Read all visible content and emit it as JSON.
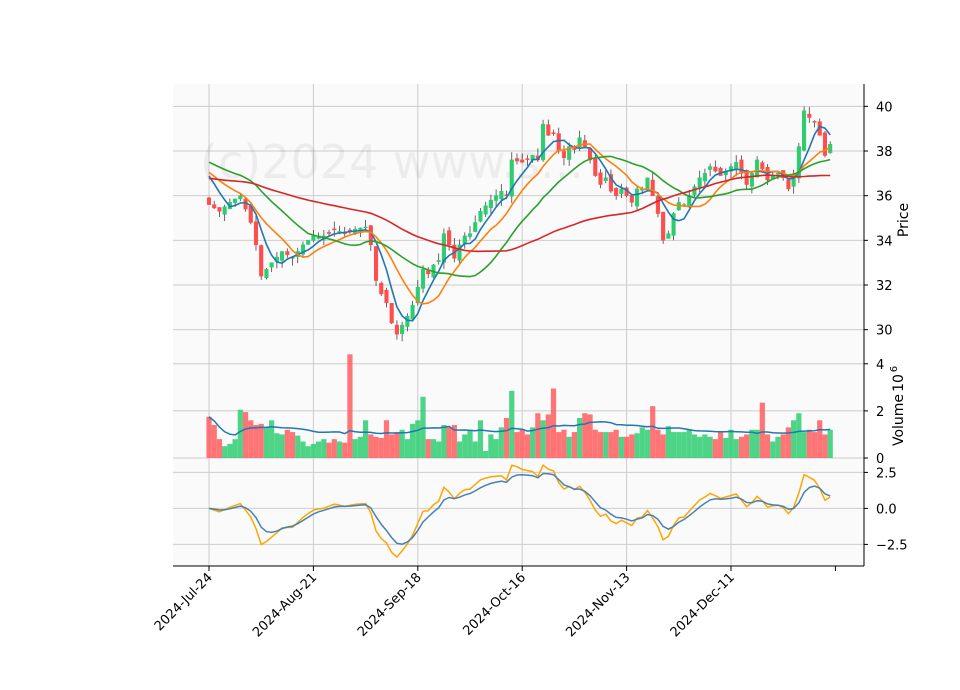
{
  "chart_data": {
    "type": "candlestick",
    "watermark": "(c)2024 www.s...",
    "y_label_price": "Price",
    "y_label_volume": "Volume",
    "volume_exponent": "10",
    "volume_exponent_power": "6",
    "price_ylim": [
      29.0,
      41.0
    ],
    "volume_ylim": [
      0,
      4.5
    ],
    "macd_ylim": [
      -4.0,
      3.5
    ],
    "price_ticks": [
      "30",
      "32",
      "34",
      "36",
      "38",
      "40"
    ],
    "volume_ticks": [
      "0",
      "2",
      "4"
    ],
    "macd_ticks": [
      "−2.5",
      "0.0",
      "2.5"
    ],
    "x_tick_labels": [
      "2024-Jul-24",
      "2024-Aug-21",
      "2024-Sep-18",
      "2024-Oct-16",
      "2024-Nov-13",
      "2024-Dec-11"
    ],
    "x_tick_index": [
      0,
      20,
      40,
      60,
      80,
      100
    ],
    "n_bars": 120,
    "price_anchors": [
      [
        0,
        35.6
      ],
      [
        2,
        35.3
      ],
      [
        4,
        35.7
      ],
      [
        6,
        36.0
      ],
      [
        8,
        34.8
      ],
      [
        9,
        33.8
      ],
      [
        10,
        32.4
      ],
      [
        12,
        33.0
      ],
      [
        14,
        33.5
      ],
      [
        16,
        33.2
      ],
      [
        18,
        33.8
      ],
      [
        20,
        34.2
      ],
      [
        22,
        34.2
      ],
      [
        24,
        34.5
      ],
      [
        26,
        34.3
      ],
      [
        28,
        34.5
      ],
      [
        30,
        34.6
      ],
      [
        31,
        33.8
      ],
      [
        32,
        32.2
      ],
      [
        33,
        31.6
      ],
      [
        34,
        31.2
      ],
      [
        35,
        30.3
      ],
      [
        36,
        29.8
      ],
      [
        37,
        30.2
      ],
      [
        38,
        30.6
      ],
      [
        39,
        31.1
      ],
      [
        40,
        31.9
      ],
      [
        41,
        32.7
      ],
      [
        42,
        32.5
      ],
      [
        43,
        32.9
      ],
      [
        44,
        33.1
      ],
      [
        45,
        34.3
      ],
      [
        46,
        33.8
      ],
      [
        47,
        33.2
      ],
      [
        48,
        33.8
      ],
      [
        49,
        34.2
      ],
      [
        50,
        34.3
      ],
      [
        52,
        35.3
      ],
      [
        54,
        35.8
      ],
      [
        56,
        36.2
      ],
      [
        57,
        36.0
      ],
      [
        58,
        37.6
      ],
      [
        60,
        37.5
      ],
      [
        62,
        37.8
      ],
      [
        63,
        37.6
      ],
      [
        64,
        39.2
      ],
      [
        65,
        38.7
      ],
      [
        66,
        38.8
      ],
      [
        67,
        38.0
      ],
      [
        68,
        37.7
      ],
      [
        69,
        38.2
      ],
      [
        70,
        38.1
      ],
      [
        71,
        38.6
      ],
      [
        72,
        38.2
      ],
      [
        73,
        37.6
      ],
      [
        74,
        36.9
      ],
      [
        75,
        36.5
      ],
      [
        76,
        36.8
      ],
      [
        77,
        36.2
      ],
      [
        78,
        36.0
      ],
      [
        79,
        36.3
      ],
      [
        80,
        36.0
      ],
      [
        81,
        35.7
      ],
      [
        82,
        36.3
      ],
      [
        83,
        36.3
      ],
      [
        84,
        36.8
      ],
      [
        85,
        36.0
      ],
      [
        86,
        35.2
      ],
      [
        87,
        34.0
      ],
      [
        88,
        34.3
      ],
      [
        89,
        35.2
      ],
      [
        90,
        35.7
      ],
      [
        91,
        35.6
      ],
      [
        92,
        36.0
      ],
      [
        93,
        36.4
      ],
      [
        94,
        36.8
      ],
      [
        95,
        37.0
      ],
      [
        96,
        37.3
      ],
      [
        97,
        37.1
      ],
      [
        98,
        36.9
      ],
      [
        99,
        37.1
      ],
      [
        100,
        37.3
      ],
      [
        101,
        37.5
      ],
      [
        102,
        37.0
      ],
      [
        103,
        36.5
      ],
      [
        104,
        37.0
      ],
      [
        105,
        37.6
      ],
      [
        106,
        37.2
      ],
      [
        107,
        36.7
      ],
      [
        108,
        36.9
      ],
      [
        109,
        37.0
      ],
      [
        110,
        36.8
      ],
      [
        111,
        36.3
      ],
      [
        112,
        36.9
      ],
      [
        113,
        38.2
      ],
      [
        114,
        39.8
      ],
      [
        115,
        39.5
      ],
      [
        116,
        39.3
      ],
      [
        117,
        38.7
      ],
      [
        118,
        37.8
      ],
      [
        119,
        38.3
      ]
    ],
    "volume_anchors": [
      [
        0,
        1.75
      ],
      [
        1,
        1.4
      ],
      [
        2,
        0.8
      ],
      [
        3,
        0.5
      ],
      [
        4,
        0.6
      ],
      [
        5,
        0.8
      ],
      [
        6,
        2.05
      ],
      [
        7,
        1.95
      ],
      [
        8,
        1.6
      ],
      [
        9,
        1.4
      ],
      [
        10,
        1.45
      ],
      [
        11,
        1.3
      ],
      [
        12,
        1.6
      ],
      [
        13,
        1.05
      ],
      [
        14,
        1.0
      ],
      [
        15,
        1.2
      ],
      [
        16,
        1.1
      ],
      [
        17,
        0.95
      ],
      [
        18,
        0.7
      ],
      [
        19,
        0.5
      ],
      [
        20,
        0.6
      ],
      [
        21,
        0.7
      ],
      [
        22,
        0.8
      ],
      [
        23,
        0.65
      ],
      [
        24,
        0.8
      ],
      [
        25,
        0.7
      ],
      [
        26,
        0.65
      ],
      [
        27,
        4.4
      ],
      [
        28,
        0.8
      ],
      [
        29,
        0.9
      ],
      [
        30,
        1.6
      ],
      [
        31,
        1.0
      ],
      [
        32,
        0.9
      ],
      [
        33,
        0.85
      ],
      [
        34,
        1.6
      ],
      [
        35,
        1.0
      ],
      [
        36,
        1.1
      ],
      [
        37,
        1.2
      ],
      [
        38,
        0.8
      ],
      [
        39,
        1.45
      ],
      [
        40,
        1.6
      ],
      [
        41,
        2.6
      ],
      [
        42,
        0.8
      ],
      [
        43,
        0.8
      ],
      [
        44,
        0.7
      ],
      [
        45,
        1.4
      ],
      [
        46,
        1.3
      ],
      [
        47,
        1.4
      ],
      [
        48,
        0.7
      ],
      [
        49,
        1.0
      ],
      [
        50,
        1.2
      ],
      [
        51,
        0.7
      ],
      [
        52,
        1.6
      ],
      [
        53,
        0.3
      ],
      [
        54,
        1.0
      ],
      [
        55,
        0.8
      ],
      [
        56,
        1.3
      ],
      [
        57,
        1.7
      ],
      [
        58,
        2.85
      ],
      [
        59,
        1.1
      ],
      [
        60,
        1.2
      ],
      [
        61,
        1.0
      ],
      [
        62,
        1.3
      ],
      [
        63,
        1.9
      ],
      [
        64,
        1.6
      ],
      [
        65,
        1.85
      ],
      [
        66,
        2.95
      ],
      [
        67,
        1.1
      ],
      [
        68,
        1.2
      ],
      [
        69,
        0.9
      ],
      [
        70,
        1.1
      ],
      [
        71,
        1.7
      ],
      [
        72,
        1.9
      ],
      [
        73,
        1.85
      ],
      [
        74,
        1.2
      ],
      [
        75,
        1.1
      ],
      [
        76,
        1.1
      ],
      [
        77,
        1.1
      ],
      [
        78,
        1.2
      ],
      [
        79,
        0.9
      ],
      [
        80,
        0.9
      ],
      [
        81,
        1.0
      ],
      [
        82,
        1.05
      ],
      [
        83,
        1.3
      ],
      [
        84,
        1.2
      ],
      [
        85,
        2.2
      ],
      [
        86,
        1.2
      ],
      [
        87,
        1.0
      ],
      [
        88,
        1.35
      ],
      [
        89,
        1.1
      ],
      [
        90,
        1.1
      ],
      [
        91,
        1.1
      ],
      [
        92,
        1.2
      ],
      [
        93,
        1.0
      ],
      [
        94,
        0.9
      ],
      [
        95,
        1.0
      ],
      [
        96,
        0.9
      ],
      [
        97,
        0.8
      ],
      [
        98,
        1.1
      ],
      [
        99,
        0.85
      ],
      [
        100,
        1.2
      ],
      [
        101,
        0.8
      ],
      [
        102,
        0.9
      ],
      [
        103,
        1.0
      ],
      [
        104,
        1.2
      ],
      [
        105,
        1.2
      ],
      [
        106,
        2.35
      ],
      [
        107,
        1.0
      ],
      [
        108,
        0.7
      ],
      [
        109,
        0.9
      ],
      [
        110,
        1.0
      ],
      [
        111,
        1.3
      ],
      [
        112,
        1.6
      ],
      [
        113,
        1.9
      ],
      [
        114,
        1.1
      ],
      [
        115,
        1.2
      ],
      [
        116,
        1.1
      ],
      [
        117,
        1.6
      ],
      [
        118,
        1.0
      ],
      [
        119,
        1.2
      ]
    ],
    "ma_periods": [
      5,
      10,
      20,
      50
    ],
    "ma_colors": [
      "#1f77b4",
      "#ff7f0e",
      "#2ca02c",
      "#d62728"
    ],
    "volume_ma_color": "#1f77b4",
    "macd_colors": [
      "#4682b4",
      "#ffa500"
    ],
    "up_color": "#26a69a",
    "up_fill": "#2ecc71",
    "down_color": "#ef5350",
    "grid": true,
    "background": "#fafafa"
  }
}
